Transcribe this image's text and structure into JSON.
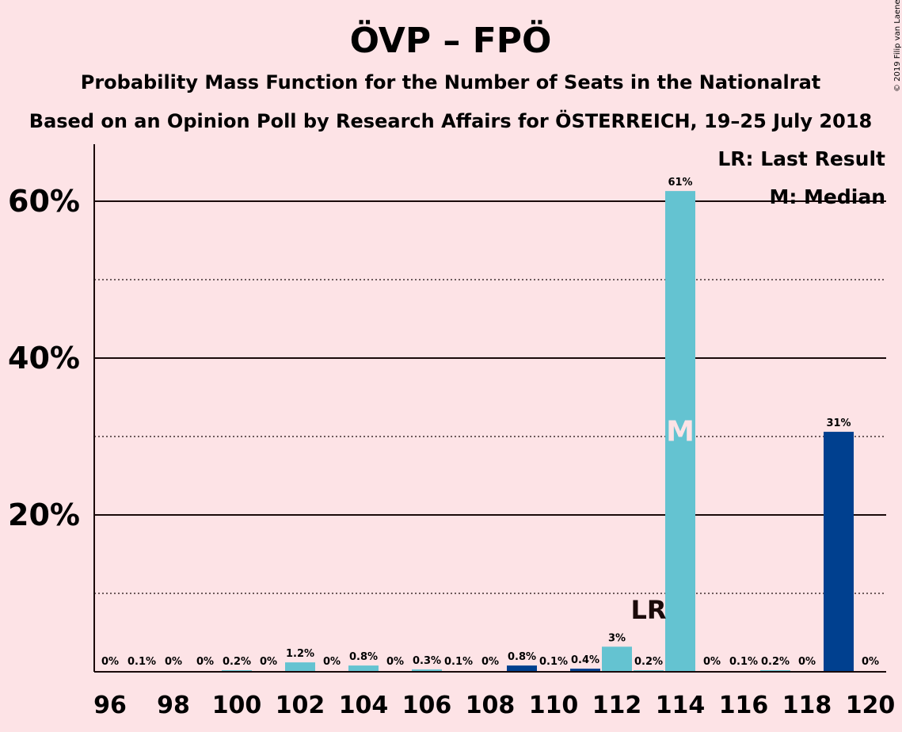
{
  "title": "ÖVP – FPÖ",
  "subtitle1": "Probability Mass Function for the Number of Seats in the Nationalrat",
  "subtitle2": "Based on an Opinion Poll by Research Affairs for ÖSTERREICH, 19–25 July 2018",
  "copyright": "© 2019 Filip van Laenen",
  "legend": {
    "lr": "LR: Last Result",
    "median": "M: Median"
  },
  "markers": {
    "lr_label": "LR",
    "lr_seat": 113,
    "median_label": "M",
    "median_seat": 114
  },
  "colors": {
    "background": "#fde3e6",
    "bar_light": "#64c3d1",
    "bar_dark": "#00408f",
    "text": "#1a0a0a"
  },
  "chart_data": {
    "type": "bar",
    "title": "ÖVP – FPÖ",
    "xlabel": "",
    "ylabel": "",
    "ylim": [
      0,
      67
    ],
    "grid": true,
    "legend_placement": "top-right",
    "x_tick_labels": [
      "96",
      "98",
      "100",
      "102",
      "104",
      "106",
      "108",
      "110",
      "112",
      "114",
      "116",
      "118",
      "120"
    ],
    "y_tick_labels": [
      "20%",
      "40%",
      "60%"
    ],
    "seats": [
      96,
      97,
      98,
      99,
      100,
      101,
      102,
      103,
      104,
      105,
      106,
      107,
      108,
      109,
      110,
      111,
      112,
      113,
      114,
      115,
      116,
      117,
      118,
      119,
      120
    ],
    "values": [
      0,
      0.1,
      0,
      0,
      0.2,
      0,
      1.2,
      0,
      0.8,
      0,
      0.3,
      0.1,
      0,
      0.8,
      0.1,
      0.4,
      3.2,
      0.2,
      61.3,
      0,
      0.1,
      0.2,
      0,
      30.6,
      0
    ],
    "labels": [
      "0%",
      "0.1%",
      "0%",
      "0%",
      "0.2%",
      "0%",
      "1.2%",
      "0%",
      "0.8%",
      "0%",
      "0.3%",
      "0.1%",
      "0%",
      "0.8%",
      "0.1%",
      "0.4%",
      "3%",
      "0.2%",
      "61%",
      "0%",
      "0.1%",
      "0.2%",
      "0%",
      "31%",
      "0%"
    ],
    "colors": [
      "light",
      "light",
      "light",
      "light",
      "light",
      "light",
      "light",
      "light",
      "light",
      "light",
      "light",
      "light",
      "light",
      "dark",
      "light",
      "dark",
      "light",
      "light",
      "light",
      "light",
      "light",
      "light",
      "light",
      "dark",
      "light"
    ]
  }
}
